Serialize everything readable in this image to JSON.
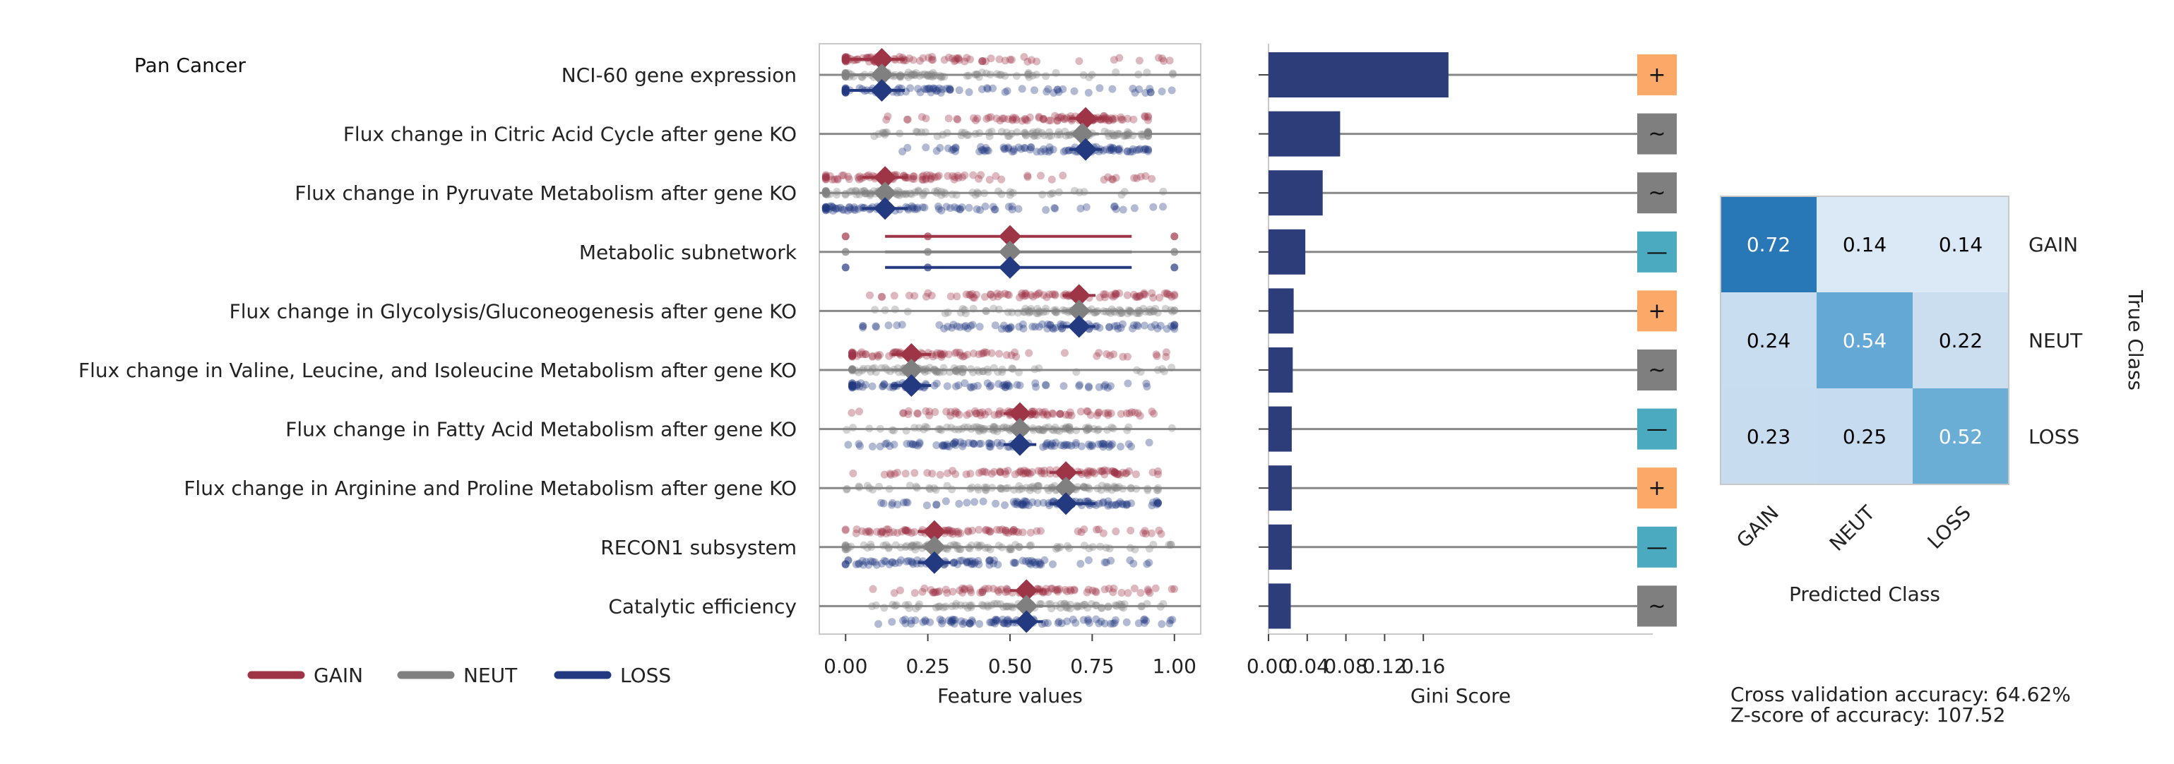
{
  "chart_data": [
    {
      "type": "strip",
      "panel": "feature-values",
      "title": "Pan Cancer",
      "xlabel": "Feature values",
      "xlim": [
        -0.08,
        1.08
      ],
      "xticks": [
        "0.00",
        "0.25",
        "0.50",
        "0.75",
        "1.00"
      ],
      "xtick_values": [
        0,
        0.25,
        0.5,
        0.75,
        1.0
      ],
      "features": [
        "NCI-60 gene expression",
        "Flux change in Citric Acid Cycle after gene KO",
        "Flux change in Pyruvate Metabolism after gene KO",
        "Metabolic subnetwork",
        "Flux change in Glycolysis/Gluconeogenesis after gene KO",
        "Flux change in Valine, Leucine, and Isoleucine Metabolism after gene KO",
        "Flux change in Fatty Acid Metabolism after gene KO",
        "Flux change in Arginine and Proline Metabolism after gene KO",
        "RECON1 subsystem",
        "Catalytic efficiency"
      ],
      "series": [
        {
          "name": "GAIN",
          "color": "#9e3547",
          "means": [
            0.11,
            0.73,
            0.12,
            0.5,
            0.71,
            0.2,
            0.53,
            0.67,
            0.27,
            0.55
          ],
          "ci": [
            [
              0.0,
              0.18
            ],
            [
              0.68,
              0.78
            ],
            [
              0.05,
              0.19
            ],
            [
              0.12,
              0.87
            ],
            [
              0.66,
              0.76
            ],
            [
              0.14,
              0.26
            ],
            [
              0.48,
              0.58
            ],
            [
              0.62,
              0.72
            ],
            [
              0.22,
              0.32
            ],
            [
              0.5,
              0.6
            ]
          ]
        },
        {
          "name": "NEUT",
          "color": "#808080",
          "means": [
            0.11,
            0.72,
            0.12,
            0.5,
            0.71,
            0.2,
            0.53,
            0.67,
            0.27,
            0.55
          ],
          "ci": [
            [
              0.0,
              0.18
            ],
            [
              0.67,
              0.77
            ],
            [
              0.05,
              0.19
            ],
            [
              0.12,
              0.87
            ],
            [
              0.66,
              0.76
            ],
            [
              0.14,
              0.26
            ],
            [
              0.48,
              0.58
            ],
            [
              0.62,
              0.72
            ],
            [
              0.22,
              0.32
            ],
            [
              0.5,
              0.6
            ]
          ]
        },
        {
          "name": "LOSS",
          "color": "#233a80",
          "means": [
            0.11,
            0.73,
            0.12,
            0.5,
            0.71,
            0.2,
            0.53,
            0.67,
            0.27,
            0.55
          ],
          "ci": [
            [
              0.0,
              0.18
            ],
            [
              0.68,
              0.78
            ],
            [
              0.05,
              0.19
            ],
            [
              0.12,
              0.87
            ],
            [
              0.66,
              0.76
            ],
            [
              0.14,
              0.26
            ],
            [
              0.48,
              0.58
            ],
            [
              0.62,
              0.76
            ],
            [
              0.22,
              0.32
            ],
            [
              0.5,
              0.6
            ]
          ]
        }
      ],
      "point_ranges": [
        [
          0.0,
          1.0
        ],
        [
          0.08,
          0.92
        ],
        [
          -0.06,
          0.98
        ],
        [
          0.0,
          1.0
        ],
        [
          0.05,
          1.0
        ],
        [
          0.02,
          1.0
        ],
        [
          0.0,
          1.0
        ],
        [
          0.0,
          0.95
        ],
        [
          0.0,
          1.0
        ],
        [
          0.08,
          1.0
        ]
      ],
      "legend": [
        "GAIN",
        "NEUT",
        "LOSS"
      ],
      "legend_position": "bottom-left"
    },
    {
      "type": "bar",
      "orientation": "horizontal",
      "panel": "gini",
      "xlabel": "Gini Score",
      "xlim": [
        0,
        0.19
      ],
      "xticks": [
        "0.00",
        "0.04",
        "0.08",
        "0.12",
        "0.16"
      ],
      "xtick_values": [
        0,
        0.04,
        0.08,
        0.12,
        0.16
      ],
      "categories": [
        "NCI-60 gene expression",
        "Flux change in Citric Acid Cycle after gene KO",
        "Flux change in Pyruvate Metabolism after gene KO",
        "Metabolic subnetwork",
        "Flux change in Glycolysis/Gluconeogenesis after gene KO",
        "Flux change in Valine, Leucine, and Isoleucine Metabolism after gene KO",
        "Flux change in Fatty Acid Metabolism after gene KO",
        "Flux change in Arginine and Proline Metabolism after gene KO",
        "RECON1 subsystem",
        "Catalytic efficiency"
      ],
      "values": [
        0.186,
        0.074,
        0.056,
        0.038,
        0.026,
        0.025,
        0.024,
        0.024,
        0.024,
        0.023
      ],
      "bar_color": "#2c3d79",
      "direction_badges": [
        "+",
        "~",
        "~",
        "—",
        "+",
        "~",
        "—",
        "+",
        "—",
        "~"
      ],
      "badge_colors": {
        "+": "#fba868",
        "~": "#7f7f7f",
        "—": "#4ba9c0"
      }
    },
    {
      "type": "heatmap",
      "panel": "confusion-matrix",
      "xlabel": "Predicted Class",
      "ylabel": "True Class",
      "xticklabels": [
        "GAIN",
        "NEUT",
        "LOSS"
      ],
      "yticklabels": [
        "GAIN",
        "NEUT",
        "LOSS"
      ],
      "values": [
        [
          0.72,
          0.14,
          0.14
        ],
        [
          0.24,
          0.54,
          0.22
        ],
        [
          0.23,
          0.25,
          0.52
        ]
      ],
      "cell_labels": [
        [
          "0.72",
          "0.14",
          "0.14"
        ],
        [
          "0.24",
          "0.54",
          "0.22"
        ],
        [
          "0.23",
          "0.25",
          "0.52"
        ]
      ],
      "cell_colors": [
        [
          "#2878b8",
          "#dbe9f6",
          "#dbe9f6"
        ],
        [
          "#c9ddf0",
          "#64a8d5",
          "#cadef0"
        ],
        [
          "#c8dcf0",
          "#c6dbef",
          "#6aaed6"
        ]
      ],
      "text_colors": [
        [
          "#ffffff",
          "#000000",
          "#000000"
        ],
        [
          "#000000",
          "#ffffff",
          "#000000"
        ],
        [
          "#000000",
          "#000000",
          "#ffffff"
        ]
      ]
    }
  ],
  "footer": {
    "accuracy": "Cross validation accuracy: 64.62%",
    "zscore": "Z-score of accuracy: 107.52"
  }
}
